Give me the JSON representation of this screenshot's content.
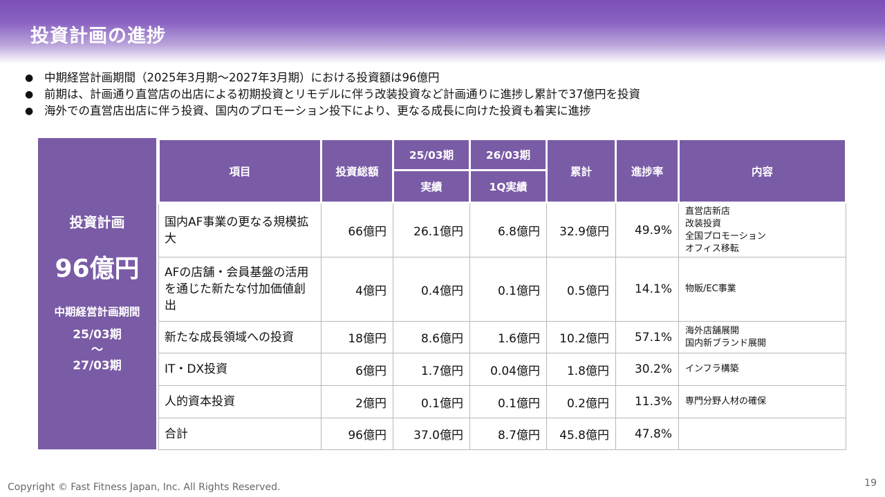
{
  "title": "投資計画の進捗",
  "bullets": [
    "中期経営計画期間（2025年3月期～2027年3月期）における投資額は96億円",
    "前期は、計画通り直営店の出店による初期投資とリモデルに伴う改装投資など計画通りに進捗し累計で37億円を投資",
    "海外での直営店出店に伴う投資、国内のプロモーション投下により、更なる成長に向けた投資も着実に進捗"
  ],
  "bullet_symbol": "●",
  "left_panel": {
    "title": "投資計画",
    "amount": "96億円",
    "period_label": "中期経営計画期間",
    "period_start": "25/03期",
    "tilde": "～",
    "period_end": "27/03期"
  },
  "table": {
    "headers": {
      "item": "項目",
      "total_investment": "投資総額",
      "fy25": "25/03期",
      "fy25_sub": "実績",
      "fy26": "26/03期",
      "fy26_sub": "1Q実績",
      "cumulative": "累計",
      "progress": "進捗率",
      "content": "内容"
    },
    "rows": [
      {
        "item": "国内AF事業の更なる規模拡大",
        "total": "66億円",
        "fy25": "26.1億円",
        "fy26_1q": "6.8億円",
        "cumulative": "32.9億円",
        "progress": "49.9%",
        "content": [
          "直営店新店",
          "改装投資",
          "全国プロモーション",
          "オフィス移転"
        ]
      },
      {
        "item": "AFの店舗・会員基盤の活用を通じた新たな付加価値創出",
        "total": "4億円",
        "fy25": "0.4億円",
        "fy26_1q": "0.1億円",
        "cumulative": "0.5億円",
        "progress": "14.1%",
        "content": [
          "物販/EC事業"
        ]
      },
      {
        "item": "新たな成長領域への投資",
        "total": "18億円",
        "fy25": "8.6億円",
        "fy26_1q": "1.6億円",
        "cumulative": "10.2億円",
        "progress": "57.1%",
        "content": [
          "海外店舗展開",
          "国内新ブランド展開"
        ]
      },
      {
        "item": "IT・DX投資",
        "total": "6億円",
        "fy25": "1.7億円",
        "fy26_1q": "0.04億円",
        "cumulative": "1.8億円",
        "progress": "30.2%",
        "content": [
          "インフラ構築"
        ]
      },
      {
        "item": "人的資本投資",
        "total": "2億円",
        "fy25": "0.1億円",
        "fy26_1q": "0.1億円",
        "cumulative": "0.2億円",
        "progress": "11.3%",
        "content": [
          "専門分野人材の確保"
        ]
      },
      {
        "item": "合計",
        "total": "96億円",
        "fy25": "37.0億円",
        "fy26_1q": "8.7億円",
        "cumulative": "45.8億円",
        "progress": "47.8%",
        "content": []
      }
    ]
  },
  "footer": {
    "copyright": "Copyright © Fast Fitness Japan, Inc. All Rights Reserved.",
    "page_number": "19"
  },
  "colors": {
    "header_band": "#7b4fb8",
    "panel": "#7a5ba6",
    "table_border": "#b7b7b7"
  }
}
